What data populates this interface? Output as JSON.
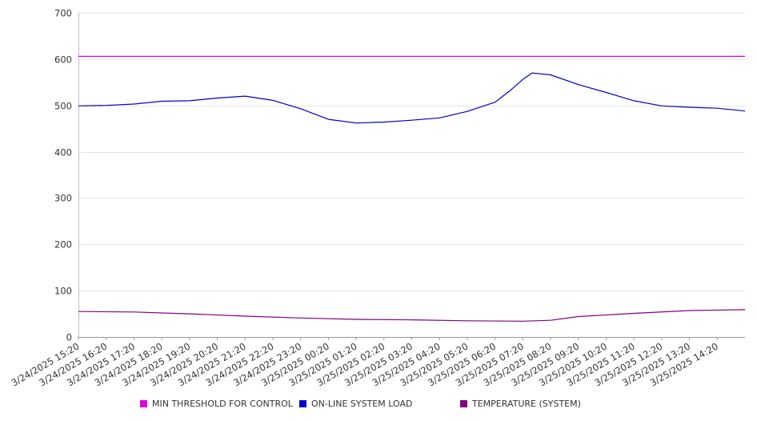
{
  "chart_data": {
    "type": "line",
    "title": "",
    "xlabel": "",
    "ylabel": "",
    "ylim": [
      0,
      700
    ],
    "yticks": [
      0,
      100,
      200,
      300,
      400,
      500,
      600,
      700
    ],
    "grid": true,
    "legend_position": "bottom",
    "x_tick_labels": [
      "3/24/2025 15:20",
      "3/24/2025 16:20",
      "3/24/2025 17:20",
      "3/24/2025 18:20",
      "3/24/2025 19:20",
      "3/24/2025 20:20",
      "3/24/2025 21:20",
      "3/24/2025 22:20",
      "3/24/2025 23:20",
      "3/25/2025 00:20",
      "3/25/2025 01:20",
      "3/25/2025 02:20",
      "3/25/2025 03:20",
      "3/25/2025 04:20",
      "3/25/2025 05:20",
      "3/25/2025 06:20",
      "3/25/2025 07:20",
      "3/25/2025 08:20",
      "3/25/2025 09:20",
      "3/25/2025 10:20",
      "3/25/2025 11:20",
      "3/25/2025 12:20",
      "3/25/2025 13:20",
      "3/25/2025 14:20"
    ],
    "x_range": [
      "3/24/2025 15:20",
      "3/25/2025 15:20"
    ],
    "series": [
      {
        "name": "MIN THRESHOLD FOR CONTROL",
        "color": "#dd00dd",
        "x": [
          "3/24/2025 15:20",
          "3/25/2025 15:20"
        ],
        "y": [
          606,
          606
        ]
      },
      {
        "name": "ON-LINE SYSTEM LOAD",
        "color": "#0000cc",
        "x": [
          "3/24/2025 15:20",
          "3/24/2025 16:20",
          "3/24/2025 17:20",
          "3/24/2025 18:20",
          "3/24/2025 19:20",
          "3/24/2025 20:20",
          "3/24/2025 21:20",
          "3/24/2025 22:20",
          "3/24/2025 23:20",
          "3/25/2025 00:20",
          "3/25/2025 01:20",
          "3/25/2025 02:20",
          "3/25/2025 03:20",
          "3/25/2025 04:20",
          "3/25/2025 05:20",
          "3/25/2025 06:20",
          "3/25/2025 06:50",
          "3/25/2025 07:20",
          "3/25/2025 07:40",
          "3/25/2025 08:20",
          "3/25/2025 09:20",
          "3/25/2025 10:20",
          "3/25/2025 11:20",
          "3/25/2025 12:20",
          "3/25/2025 13:20",
          "3/25/2025 14:20",
          "3/25/2025 15:20"
        ],
        "y": [
          499,
          500,
          503,
          509,
          510,
          516,
          520,
          511,
          493,
          470,
          462,
          464,
          468,
          473,
          487,
          507,
          530,
          556,
          570,
          566,
          545,
          528,
          510,
          499,
          496,
          494,
          488
        ]
      },
      {
        "name": "TEMPERATURE (SYSTEM)",
        "color": "#800080",
        "x": [
          "3/24/2025 15:20",
          "3/24/2025 17:20",
          "3/24/2025 19:20",
          "3/24/2025 21:20",
          "3/24/2025 23:20",
          "3/25/2025 01:20",
          "3/25/2025 03:20",
          "3/25/2025 05:20",
          "3/25/2025 07:20",
          "3/25/2025 08:20",
          "3/25/2025 09:20",
          "3/25/2025 11:20",
          "3/25/2025 13:20",
          "3/25/2025 15:20"
        ],
        "y": [
          55,
          54,
          50,
          45,
          41,
          38,
          37,
          35,
          34,
          36,
          44,
          51,
          57,
          59
        ]
      }
    ]
  }
}
